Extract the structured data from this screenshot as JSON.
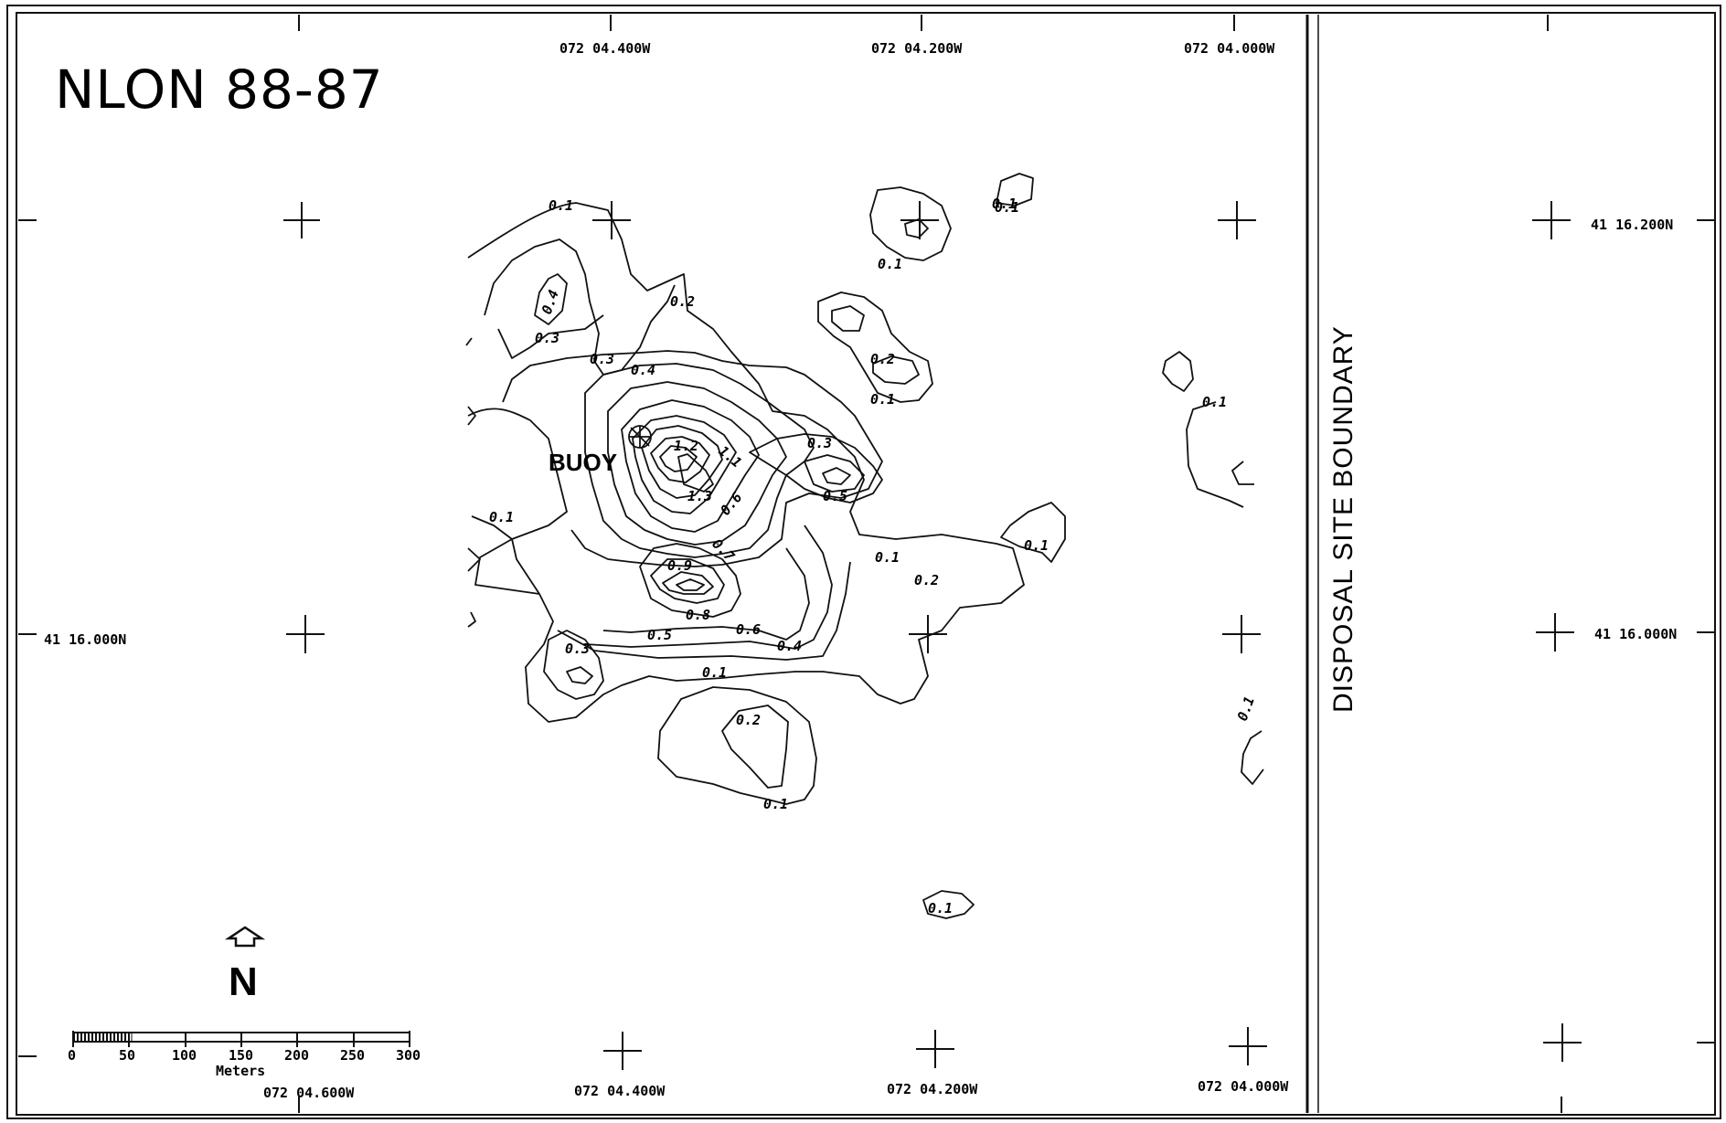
{
  "title": "NLON 88-87",
  "boundary_label": "DISPOSAL SITE BOUNDARY",
  "buoy_label": "BUOY",
  "north_label": "N",
  "scale_bar": {
    "ticks": [
      "0",
      "50",
      "100",
      "150",
      "200",
      "250",
      "300"
    ],
    "unit": "Meters"
  },
  "longitude_labels_top": [
    "072 04.400W",
    "072 04.200W",
    "072 04.000W"
  ],
  "longitude_labels_bottom": [
    "072 04.600W",
    "072 04.400W",
    "072 04.200W",
    "072 04.000W"
  ],
  "latitude_labels_left": [
    "41 16.000N"
  ],
  "latitude_labels_right": [
    "41 16.200N",
    "41 16.000N"
  ],
  "contour_labels": [
    "0.1",
    "0.1",
    "0.1",
    "0.1",
    "0.2",
    "0.4",
    "0.3",
    "0.3",
    "0.4",
    "0.2",
    "0.1",
    "0.3",
    "1.2",
    "1.1",
    "1.3",
    "0.5",
    "0.6",
    "0.1",
    "0.7",
    "0.9",
    "0.8",
    "0.5",
    "0.6",
    "0.4",
    "0.3",
    "0.2",
    "0.1",
    "0.1",
    "0.1",
    "0.1",
    "0.2",
    "0.1",
    "0.1",
    "0.1"
  ]
}
